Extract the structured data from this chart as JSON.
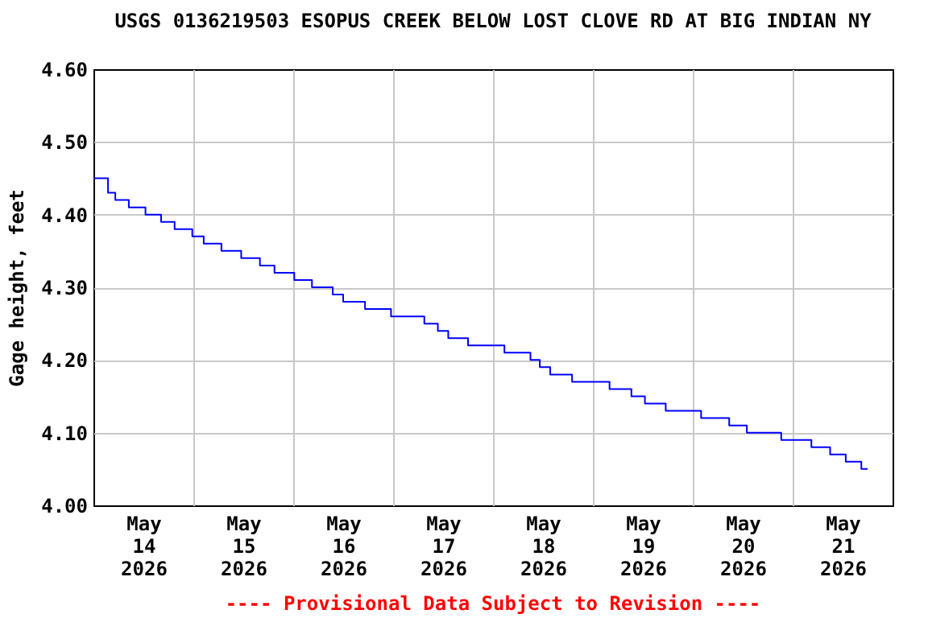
{
  "chart_data": {
    "type": "step",
    "title": "USGS 0136219503 ESOPUS CREEK BELOW LOST CLOVE RD AT BIG INDIAN NY",
    "ylabel": "Gage height, feet",
    "annotations": [
      "---- Provisional Data Subject to Revision ----"
    ],
    "x": [
      "2026-05-14T00:00",
      "2026-05-14T03:30",
      "2026-05-14T05:15",
      "2026-05-14T08:30",
      "2026-05-14T12:30",
      "2026-05-14T16:15",
      "2026-05-14T19:30",
      "2026-05-14T23:45",
      "2026-05-15T02:30",
      "2026-05-15T06:45",
      "2026-05-15T11:30",
      "2026-05-15T16:00",
      "2026-05-15T19:30",
      "2026-05-16T00:15",
      "2026-05-16T04:30",
      "2026-05-16T09:30",
      "2026-05-16T12:00",
      "2026-05-16T17:15",
      "2026-05-16T23:30",
      "2026-05-17T07:30",
      "2026-05-17T10:45",
      "2026-05-17T13:15",
      "2026-05-17T18:00",
      "2026-05-18T02:45",
      "2026-05-18T09:00",
      "2026-05-18T11:15",
      "2026-05-18T13:45",
      "2026-05-18T19:00",
      "2026-05-19T04:00",
      "2026-05-19T09:15",
      "2026-05-19T12:30",
      "2026-05-19T17:30",
      "2026-05-20T02:00",
      "2026-05-20T08:45",
      "2026-05-20T13:00",
      "2026-05-20T21:15",
      "2026-05-21T04:30",
      "2026-05-21T09:00",
      "2026-05-21T12:45",
      "2026-05-21T16:30",
      "2026-05-21T18:00"
    ],
    "series": [
      {
        "color": "#0000ff",
        "values": [
          4.45,
          4.43,
          4.42,
          4.41,
          4.4,
          4.39,
          4.38,
          4.37,
          4.36,
          4.35,
          4.34,
          4.33,
          4.32,
          4.31,
          4.3,
          4.29,
          4.28,
          4.27,
          4.26,
          4.25,
          4.24,
          4.23,
          4.22,
          4.21,
          4.2,
          4.19,
          4.18,
          4.17,
          4.16,
          4.15,
          4.14,
          4.13,
          4.12,
          4.11,
          4.1,
          4.09,
          4.08,
          4.07,
          4.06,
          4.05,
          4.05
        ]
      }
    ],
    "xlim": [
      "2026-05-14T00:00",
      "2026-05-22T00:00"
    ],
    "xticks": [
      {
        "value": "2026-05-14T12:00",
        "label": "May\n14\n2026"
      },
      {
        "value": "2026-05-15T12:00",
        "label": "May\n15\n2026"
      },
      {
        "value": "2026-05-16T12:00",
        "label": "May\n16\n2026"
      },
      {
        "value": "2026-05-17T12:00",
        "label": "May\n17\n2026"
      },
      {
        "value": "2026-05-18T12:00",
        "label": "May\n18\n2026"
      },
      {
        "value": "2026-05-19T12:00",
        "label": "May\n19\n2026"
      },
      {
        "value": "2026-05-20T12:00",
        "label": "May\n20\n2026"
      },
      {
        "value": "2026-05-21T12:00",
        "label": "May\n21\n2026"
      },
      {
        "value": "2026-05-15T00:00",
        "label": null
      },
      {
        "value": "2026-05-16T00:00",
        "label": null
      },
      {
        "value": "2026-05-17T00:00",
        "label": null
      },
      {
        "value": "2026-05-18T00:00",
        "label": null
      },
      {
        "value": "2026-05-19T00:00",
        "label": null
      },
      {
        "value": "2026-05-20T00:00",
        "label": null
      },
      {
        "value": "2026-05-21T00:00",
        "label": null
      }
    ],
    "ylim": [
      4.0,
      4.6
    ],
    "yticks": [
      {
        "value": 4.0,
        "label": "4.00"
      },
      {
        "value": 4.1,
        "label": "4.10"
      },
      {
        "value": 4.2,
        "label": "4.20"
      },
      {
        "value": 4.3,
        "label": "4.30"
      },
      {
        "value": 4.4,
        "label": "4.40"
      },
      {
        "value": 4.5,
        "label": "4.50"
      },
      {
        "value": 4.6,
        "label": "4.60"
      }
    ],
    "grid": true
  }
}
